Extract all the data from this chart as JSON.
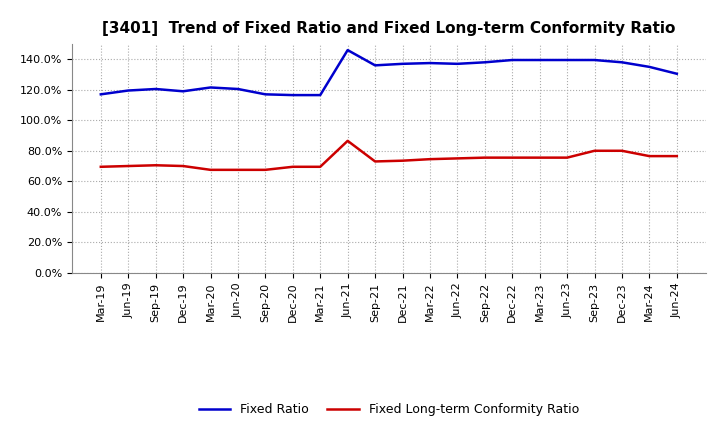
{
  "title": "[3401]  Trend of Fixed Ratio and Fixed Long-term Conformity Ratio",
  "x_labels": [
    "Mar-19",
    "Jun-19",
    "Sep-19",
    "Dec-19",
    "Mar-20",
    "Jun-20",
    "Sep-20",
    "Dec-20",
    "Mar-21",
    "Jun-21",
    "Sep-21",
    "Dec-21",
    "Mar-22",
    "Jun-22",
    "Sep-22",
    "Dec-22",
    "Mar-23",
    "Jun-23",
    "Sep-23",
    "Dec-23",
    "Mar-24",
    "Jun-24"
  ],
  "fixed_ratio": [
    117.0,
    119.5,
    120.5,
    119.0,
    121.5,
    120.5,
    117.0,
    116.5,
    116.5,
    146.0,
    136.0,
    137.0,
    137.5,
    137.0,
    138.0,
    139.5,
    139.5,
    139.5,
    139.5,
    138.0,
    135.0,
    130.5
  ],
  "fixed_lt_ratio": [
    69.5,
    70.0,
    70.5,
    70.0,
    67.5,
    67.5,
    67.5,
    69.5,
    69.5,
    86.5,
    73.0,
    73.5,
    74.5,
    75.0,
    75.5,
    75.5,
    75.5,
    75.5,
    80.0,
    80.0,
    76.5,
    76.5
  ],
  "fixed_ratio_color": "#0000CD",
  "fixed_lt_ratio_color": "#CC0000",
  "ylim": [
    0,
    150
  ],
  "yticks": [
    0,
    20,
    40,
    60,
    80,
    100,
    120,
    140
  ],
  "background_color": "#FFFFFF",
  "plot_bg_color": "#FFFFFF",
  "grid_color": "#AAAAAA",
  "legend_fixed": "Fixed Ratio",
  "legend_fixed_lt": "Fixed Long-term Conformity Ratio",
  "title_fontsize": 11,
  "tick_fontsize": 8,
  "legend_fontsize": 9
}
